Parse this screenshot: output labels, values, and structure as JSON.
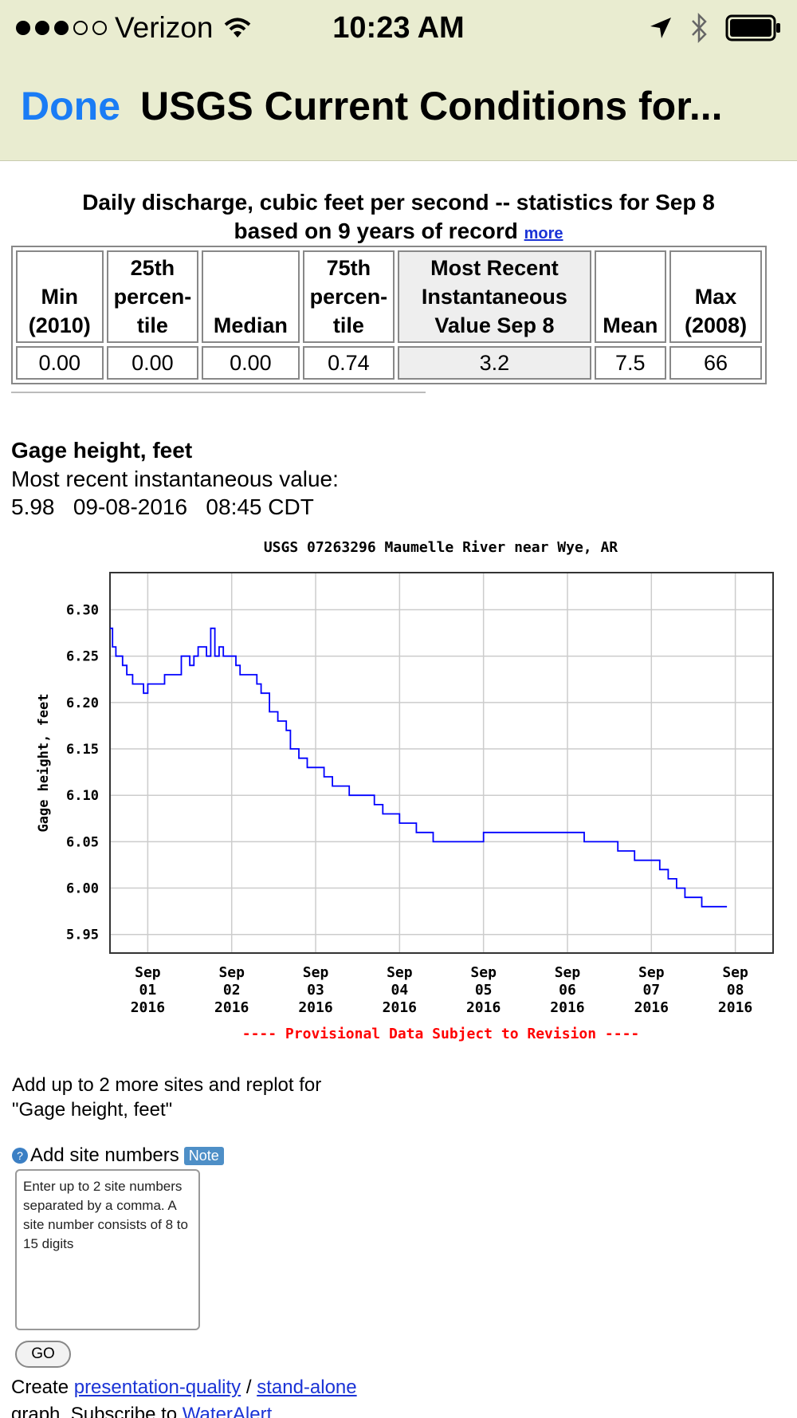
{
  "status_bar": {
    "carrier": "Verizon",
    "signal_bars_filled": 3,
    "signal_bars_total": 5,
    "time": "10:23 AM",
    "icons": [
      "wifi-icon",
      "location-arrow-icon",
      "bluetooth-icon",
      "battery-icon"
    ]
  },
  "nav": {
    "done_label": "Done",
    "title": "USGS Current Conditions for..."
  },
  "stats": {
    "heading_line1": "Daily discharge, cubic feet per second -- statistics for Sep 8",
    "heading_line2": "based on 9 years of record",
    "more_link": "more",
    "headers": [
      [
        "Min",
        "(2010)"
      ],
      [
        "25th",
        "percen-",
        "tile"
      ],
      [
        "Median"
      ],
      [
        "75th",
        "percen-",
        "tile"
      ],
      [
        "Most Recent",
        "Instantaneous",
        "Value Sep 8"
      ],
      [
        "Mean"
      ],
      [
        "Max",
        "(2008)"
      ]
    ],
    "values": [
      "0.00",
      "0.00",
      "0.00",
      "0.74",
      "3.2",
      "7.5",
      "66"
    ]
  },
  "gage": {
    "title": "Gage height, feet",
    "subtitle": "Most recent instantaneous value:",
    "value": "5.98",
    "date": "09-08-2016",
    "time": "08:45 CDT"
  },
  "chart_data": {
    "type": "line",
    "title": "USGS 07263296 Maumelle River near Wye, AR",
    "ylabel": "Gage height, feet",
    "xlabel": "",
    "x_unit": "days from Sep 01 2016 00:00",
    "xlim": [
      -0.45,
      7.45
    ],
    "ylim": [
      5.93,
      6.34
    ],
    "yticks": [
      5.95,
      6.0,
      6.05,
      6.1,
      6.15,
      6.2,
      6.25,
      6.3
    ],
    "ytick_labels": [
      "5.95",
      "6.00",
      "6.05",
      "6.10",
      "6.15",
      "6.20",
      "6.25",
      "6.30"
    ],
    "xtick_positions": [
      0,
      1,
      2,
      3,
      4,
      5,
      6,
      7
    ],
    "xtick_labels": [
      [
        "Sep",
        "01",
        "2016"
      ],
      [
        "Sep",
        "02",
        "2016"
      ],
      [
        "Sep",
        "03",
        "2016"
      ],
      [
        "Sep",
        "04",
        "2016"
      ],
      [
        "Sep",
        "05",
        "2016"
      ],
      [
        "Sep",
        "06",
        "2016"
      ],
      [
        "Sep",
        "07",
        "2016"
      ],
      [
        "Sep",
        "08",
        "2016"
      ]
    ],
    "grid": true,
    "note": "---- Provisional Data Subject to Revision ----",
    "series": [
      {
        "color": "#0000ff",
        "x": [
          -0.45,
          -0.42,
          -0.38,
          -0.3,
          -0.25,
          -0.18,
          -0.12,
          -0.05,
          0.0,
          0.05,
          0.1,
          0.2,
          0.3,
          0.4,
          0.5,
          0.55,
          0.6,
          0.7,
          0.75,
          0.8,
          0.85,
          0.9,
          0.95,
          1.0,
          1.05,
          1.1,
          1.2,
          1.3,
          1.35,
          1.45,
          1.55,
          1.65,
          1.7,
          1.8,
          1.9,
          2.0,
          2.1,
          2.2,
          2.3,
          2.4,
          2.5,
          2.6,
          2.7,
          2.8,
          2.9,
          3.0,
          3.1,
          3.2,
          3.3,
          3.4,
          3.5,
          3.6,
          3.8,
          4.0,
          4.2,
          4.4,
          4.6,
          4.8,
          5.0,
          5.2,
          5.4,
          5.6,
          5.8,
          6.0,
          6.1,
          6.2,
          6.3,
          6.4,
          6.5,
          6.6,
          6.7,
          6.8,
          6.9
        ],
        "y": [
          6.28,
          6.26,
          6.25,
          6.24,
          6.23,
          6.22,
          6.22,
          6.21,
          6.22,
          6.22,
          6.22,
          6.23,
          6.23,
          6.25,
          6.24,
          6.25,
          6.26,
          6.25,
          6.28,
          6.25,
          6.26,
          6.25,
          6.25,
          6.25,
          6.24,
          6.23,
          6.23,
          6.22,
          6.21,
          6.19,
          6.18,
          6.17,
          6.15,
          6.14,
          6.13,
          6.13,
          6.12,
          6.11,
          6.11,
          6.1,
          6.1,
          6.1,
          6.09,
          6.08,
          6.08,
          6.07,
          6.07,
          6.06,
          6.06,
          6.05,
          6.05,
          6.05,
          6.05,
          6.06,
          6.06,
          6.06,
          6.06,
          6.06,
          6.06,
          6.05,
          6.05,
          6.04,
          6.03,
          6.03,
          6.02,
          6.01,
          6.0,
          5.99,
          5.99,
          5.98,
          5.98,
          5.98,
          5.98
        ]
      }
    ]
  },
  "replot": {
    "line1": "Add up to 2 more sites and replot for",
    "line2": "\"Gage height, feet\""
  },
  "add_sites": {
    "help_glyph": "?",
    "label": "Add site numbers",
    "note_label": "Note",
    "placeholder": "Enter up to 2 site numbers separated by a comma. A site number consists of 8 to 15 digits",
    "go_label": "GO"
  },
  "footer": {
    "create_label": "Create",
    "link1": "presentation-quality",
    "separator": "/",
    "link2": "stand-alone",
    "next_text": "graph.   Subscribe to",
    "next_link": "WaterAlert"
  }
}
